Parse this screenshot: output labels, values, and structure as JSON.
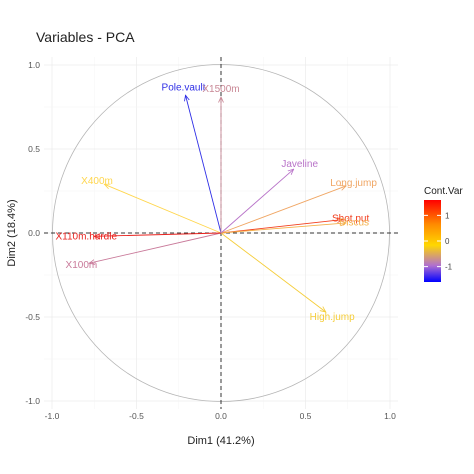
{
  "chart_data": {
    "type": "scatter",
    "subtype": "pca-variable-correlation-circle",
    "title": "Variables - PCA",
    "xlabel": "Dim1 (41.2%)",
    "ylabel": "Dim2 (18.4%)",
    "xlim": [
      -1.0,
      1.0
    ],
    "ylim": [
      -1.0,
      1.0
    ],
    "x_ticks": [
      "-1.0",
      "-0.5",
      "0.0",
      "0.5",
      "1.0"
    ],
    "y_ticks": [
      "-1.0",
      "-0.5",
      "0.0",
      "0.5",
      "1.0"
    ],
    "grid": true,
    "reference_lines": "dashed lines at x=0 and y=0",
    "unit_circle": true,
    "legend": {
      "title": "Cont.Var",
      "position": "right",
      "ticks": [
        1,
        0,
        -1
      ],
      "colors": [
        "#ff0000",
        "#ffd700",
        "#0000ff"
      ]
    },
    "series": [
      {
        "name": "X100m",
        "x": -0.78,
        "y": -0.18,
        "value": -0.25,
        "color": "#c97a9a"
      },
      {
        "name": "Long.jump",
        "x": 0.74,
        "y": 0.28,
        "value": 0.4,
        "color": "#f0a664"
      },
      {
        "name": "Shot.put",
        "x": 0.72,
        "y": 0.08,
        "value": 1.0,
        "color": "#f24020"
      },
      {
        "name": "High.jump",
        "x": 0.62,
        "y": -0.47,
        "value": 0.05,
        "color": "#f5cd3a"
      },
      {
        "name": "X400m",
        "x": -0.69,
        "y": 0.29,
        "value": 0.0,
        "color": "#ffd64d"
      },
      {
        "name": "X110m.hurdle",
        "x": -0.75,
        "y": -0.02,
        "value": 1.1,
        "color": "#e8221e"
      },
      {
        "name": "Discus",
        "x": 0.74,
        "y": 0.06,
        "value": 0.3,
        "color": "#f4b04a"
      },
      {
        "name": "Pole.vault",
        "x": -0.21,
        "y": 0.82,
        "value": -1.3,
        "color": "#2f2fe6"
      },
      {
        "name": "Javeline",
        "x": 0.43,
        "y": 0.38,
        "value": -0.5,
        "color": "#b873c8"
      },
      {
        "name": "X1500m",
        "x": 0.0,
        "y": 0.81,
        "value": -0.2,
        "color": "#c98896"
      }
    ]
  }
}
